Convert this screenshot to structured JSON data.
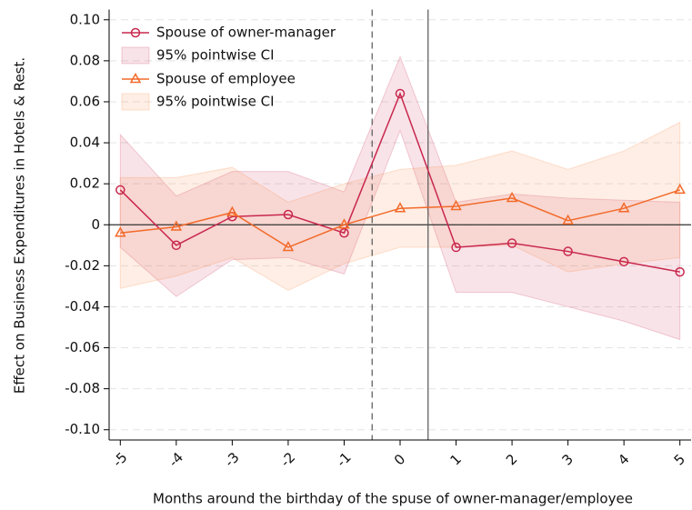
{
  "chart_data": {
    "type": "line",
    "x_label": "Months around the birthday of the spuse of owner-manager/employee",
    "y_label": "Effect on Business Expenditures in Hotels & Rest.",
    "x": [
      -5,
      -4,
      -3,
      -2,
      -1,
      0,
      1,
      2,
      3,
      4,
      5
    ],
    "xlim": [
      -5.2,
      5.2
    ],
    "xticks": [
      -5,
      -4,
      -3,
      -2,
      -1,
      0,
      1,
      2,
      3,
      4,
      5
    ],
    "ylim": [
      -0.105,
      0.105
    ],
    "yticks": [
      {
        "value": 0.1,
        "label": "0.10"
      },
      0.08,
      0.06,
      0.04,
      0.02,
      0,
      -0.02,
      -0.04,
      -0.06,
      -0.08,
      {
        "value": -0.1,
        "label": "-0.10"
      }
    ],
    "grid": true,
    "hline": 0,
    "vlines": [
      {
        "x": -0.5,
        "style": "dashed"
      },
      {
        "x": 0.5,
        "style": "solid"
      }
    ],
    "legend": "top-left",
    "series": [
      {
        "name": "Spouse of owner-manager",
        "color": "#c8284e",
        "marker": "circle",
        "values": [
          0.017,
          -0.01,
          0.004,
          0.005,
          -0.004,
          0.064,
          -0.011,
          -0.009,
          -0.013,
          -0.018,
          -0.023
        ],
        "ci": {
          "name": "95% pointwise CI",
          "fill": "rgba(200,40,78,0.13)",
          "stroke": "rgba(200,40,78,0.22)",
          "lower": [
            -0.011,
            -0.035,
            -0.017,
            -0.016,
            -0.024,
            0.046,
            -0.033,
            -0.033,
            -0.04,
            -0.047,
            -0.056
          ],
          "upper": [
            0.044,
            0.014,
            0.026,
            0.026,
            0.016,
            0.082,
            0.011,
            0.015,
            0.013,
            0.012,
            0.011
          ]
        }
      },
      {
        "name": "Spouse of employee",
        "color": "#f26a2a",
        "marker": "triangle",
        "values": [
          -0.004,
          -0.001,
          0.006,
          -0.011,
          0.0,
          0.008,
          0.009,
          0.013,
          0.002,
          0.008,
          0.017
        ],
        "ci": {
          "name": "95% pointwise CI",
          "fill": "rgba(250,140,80,0.15)",
          "stroke": "rgba(250,140,80,0.25)",
          "lower": [
            -0.031,
            -0.025,
            -0.016,
            -0.032,
            -0.019,
            -0.011,
            -0.011,
            -0.01,
            -0.023,
            -0.019,
            -0.016
          ],
          "upper": [
            0.023,
            0.023,
            0.028,
            0.011,
            0.02,
            0.027,
            0.029,
            0.036,
            0.027,
            0.036,
            0.05
          ]
        }
      }
    ]
  }
}
